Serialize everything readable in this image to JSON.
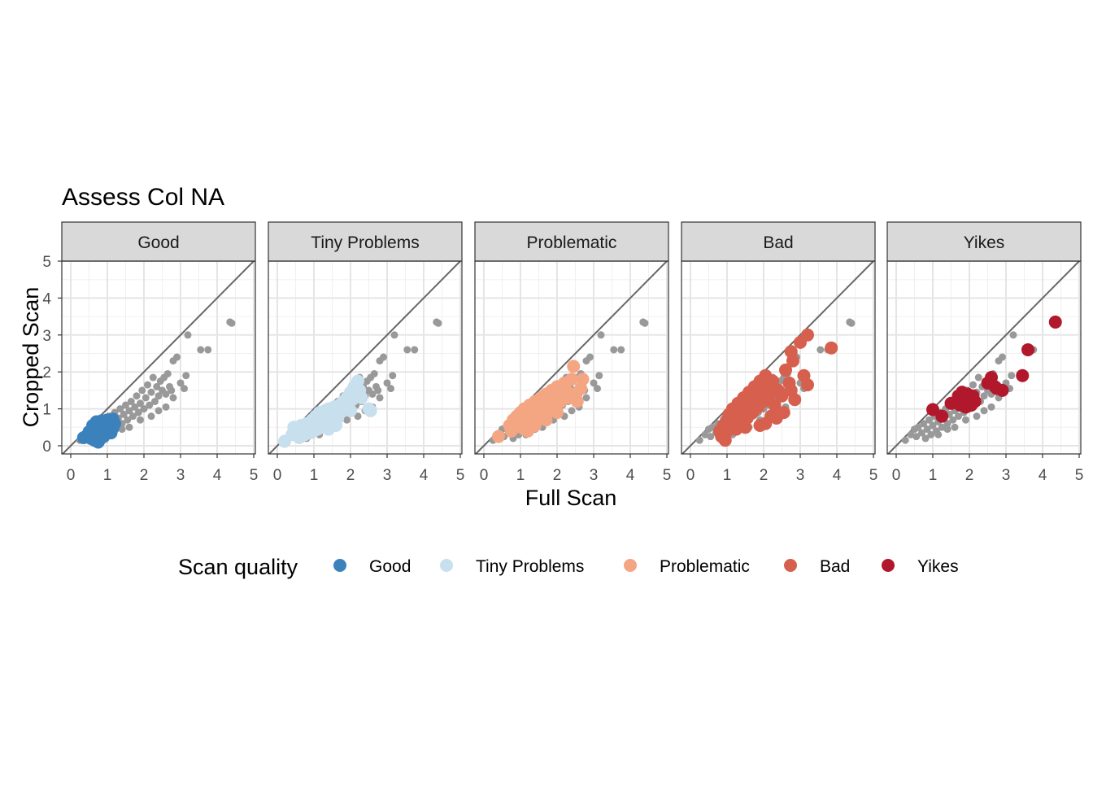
{
  "chart_data": {
    "type": "scatter",
    "title": "Assess Col NA",
    "xlabel": "Full Scan",
    "ylabel": "Cropped Scan",
    "xlim": [
      0,
      5
    ],
    "ylim": [
      0,
      5
    ],
    "x_ticks": [
      "0",
      "1",
      "2",
      "3",
      "4",
      "5"
    ],
    "y_ticks": [
      "0",
      "1",
      "2",
      "3",
      "4",
      "5"
    ],
    "grid": true,
    "reference_line": "y = x",
    "background_color": "#999999",
    "legend": {
      "title": "Scan quality",
      "placement": "bottom",
      "entries": [
        "Good",
        "Tiny Problems",
        "Problematic",
        "Bad",
        "Yikes"
      ]
    },
    "panels": [
      {
        "label": "Good",
        "color": "#3B82BD",
        "points": [
          [
            0.35,
            0.22
          ],
          [
            0.45,
            0.28
          ],
          [
            0.5,
            0.38
          ],
          [
            0.55,
            0.2
          ],
          [
            0.6,
            0.32
          ],
          [
            0.62,
            0.45
          ],
          [
            0.65,
            0.15
          ],
          [
            0.68,
            0.52
          ],
          [
            0.7,
            0.28
          ],
          [
            0.72,
            0.4
          ],
          [
            0.75,
            0.1
          ],
          [
            0.78,
            0.6
          ],
          [
            0.8,
            0.35
          ],
          [
            0.82,
            0.48
          ],
          [
            0.85,
            0.25
          ],
          [
            0.85,
            0.68
          ],
          [
            0.88,
            0.42
          ],
          [
            0.9,
            0.55
          ],
          [
            0.92,
            0.3
          ],
          [
            0.95,
            0.62
          ],
          [
            0.95,
            0.45
          ],
          [
            0.98,
            0.38
          ],
          [
            1.0,
            0.7
          ],
          [
            1.0,
            0.5
          ],
          [
            1.02,
            0.58
          ],
          [
            1.05,
            0.42
          ],
          [
            1.08,
            0.62
          ],
          [
            1.1,
            0.35
          ],
          [
            1.12,
            0.55
          ],
          [
            1.15,
            0.72
          ],
          [
            1.15,
            0.48
          ],
          [
            1.2,
            0.6
          ],
          [
            0.7,
            0.65
          ],
          [
            0.6,
            0.55
          ],
          [
            0.8,
            0.18
          ],
          [
            0.9,
            0.25
          ]
        ]
      },
      {
        "label": "Tiny Problems",
        "color": "#C8DFEE",
        "points": [
          [
            0.2,
            0.12
          ],
          [
            0.4,
            0.3
          ],
          [
            0.45,
            0.5
          ],
          [
            0.55,
            0.35
          ],
          [
            0.6,
            0.22
          ],
          [
            0.65,
            0.55
          ],
          [
            0.7,
            0.42
          ],
          [
            0.75,
            0.3
          ],
          [
            0.8,
            0.6
          ],
          [
            0.85,
            0.48
          ],
          [
            0.9,
            0.35
          ],
          [
            0.95,
            0.7
          ],
          [
            1.0,
            0.55
          ],
          [
            1.0,
            0.4
          ],
          [
            1.05,
            0.8
          ],
          [
            1.1,
            0.62
          ],
          [
            1.1,
            0.45
          ],
          [
            1.15,
            0.9
          ],
          [
            1.2,
            0.72
          ],
          [
            1.25,
            0.5
          ],
          [
            1.3,
            0.95
          ],
          [
            1.3,
            0.78
          ],
          [
            1.35,
            0.6
          ],
          [
            1.4,
            1.0
          ],
          [
            1.45,
            0.85
          ],
          [
            1.5,
            0.7
          ],
          [
            1.55,
            1.05
          ],
          [
            1.6,
            0.9
          ],
          [
            1.65,
            0.75
          ],
          [
            1.7,
            1.1
          ],
          [
            1.75,
            0.95
          ],
          [
            1.8,
            1.2
          ],
          [
            1.85,
            1.05
          ],
          [
            1.9,
            1.3
          ],
          [
            1.95,
            1.15
          ],
          [
            2.0,
            1.45
          ],
          [
            2.05,
            1.25
          ],
          [
            2.1,
            1.6
          ],
          [
            2.15,
            1.4
          ],
          [
            2.2,
            1.75
          ],
          [
            2.25,
            1.5
          ],
          [
            2.3,
            1.3
          ],
          [
            2.0,
            0.95
          ],
          [
            1.9,
            1.0
          ],
          [
            2.5,
            1.0
          ],
          [
            2.55,
            0.95
          ],
          [
            1.6,
            0.55
          ],
          [
            1.4,
            0.45
          ]
        ]
      },
      {
        "label": "Problematic",
        "color": "#F4A582",
        "points": [
          [
            0.4,
            0.25
          ],
          [
            0.7,
            0.55
          ],
          [
            0.75,
            0.4
          ],
          [
            0.8,
            0.7
          ],
          [
            0.85,
            0.5
          ],
          [
            0.9,
            0.8
          ],
          [
            0.95,
            0.6
          ],
          [
            1.0,
            0.9
          ],
          [
            1.05,
            0.7
          ],
          [
            1.1,
            0.45
          ],
          [
            1.1,
            1.0
          ],
          [
            1.15,
            0.8
          ],
          [
            1.2,
            0.6
          ],
          [
            1.25,
            1.1
          ],
          [
            1.3,
            0.9
          ],
          [
            1.35,
            0.7
          ],
          [
            1.4,
            1.2
          ],
          [
            1.45,
            1.0
          ],
          [
            1.5,
            0.8
          ],
          [
            1.55,
            1.3
          ],
          [
            1.6,
            1.1
          ],
          [
            1.65,
            0.9
          ],
          [
            1.7,
            1.4
          ],
          [
            1.75,
            1.2
          ],
          [
            1.8,
            1.0
          ],
          [
            1.85,
            1.5
          ],
          [
            1.9,
            1.3
          ],
          [
            1.95,
            1.1
          ],
          [
            2.0,
            1.6
          ],
          [
            2.05,
            1.4
          ],
          [
            2.1,
            1.2
          ],
          [
            2.2,
            1.7
          ],
          [
            2.25,
            1.5
          ],
          [
            2.3,
            1.3
          ],
          [
            2.4,
            1.8
          ],
          [
            2.45,
            2.15
          ],
          [
            2.5,
            1.4
          ],
          [
            2.55,
            1.2
          ],
          [
            2.65,
            1.55
          ],
          [
            2.7,
            1.8
          ],
          [
            1.2,
            0.4
          ],
          [
            1.4,
            0.55
          ],
          [
            1.7,
            0.7
          ],
          [
            2.0,
            0.9
          ]
        ]
      },
      {
        "label": "Bad",
        "color": "#D6604D",
        "points": [
          [
            0.8,
            0.4
          ],
          [
            0.85,
            0.25
          ],
          [
            0.9,
            0.55
          ],
          [
            0.95,
            0.15
          ],
          [
            1.0,
            0.7
          ],
          [
            1.0,
            0.4
          ],
          [
            1.05,
            0.85
          ],
          [
            1.1,
            0.55
          ],
          [
            1.15,
            1.0
          ],
          [
            1.2,
            0.7
          ],
          [
            1.25,
            0.45
          ],
          [
            1.3,
            1.15
          ],
          [
            1.35,
            0.85
          ],
          [
            1.4,
            0.6
          ],
          [
            1.45,
            1.3
          ],
          [
            1.5,
            1.0
          ],
          [
            1.55,
            0.75
          ],
          [
            1.6,
            1.45
          ],
          [
            1.65,
            1.15
          ],
          [
            1.7,
            0.9
          ],
          [
            1.75,
            1.6
          ],
          [
            1.8,
            1.3
          ],
          [
            1.85,
            1.05
          ],
          [
            1.9,
            1.75
          ],
          [
            1.95,
            1.45
          ],
          [
            2.0,
            1.2
          ],
          [
            2.05,
            1.9
          ],
          [
            2.1,
            1.6
          ],
          [
            2.15,
            1.35
          ],
          [
            2.2,
            0.8
          ],
          [
            2.25,
            1.75
          ],
          [
            2.3,
            1.1
          ],
          [
            2.35,
            0.75
          ],
          [
            2.4,
            1.5
          ],
          [
            2.5,
            1.35
          ],
          [
            2.55,
            0.9
          ],
          [
            2.6,
            2.05
          ],
          [
            2.7,
            1.7
          ],
          [
            2.75,
            1.5
          ],
          [
            2.75,
            2.55
          ],
          [
            2.8,
            2.3
          ],
          [
            2.85,
            1.25
          ],
          [
            3.0,
            2.8
          ],
          [
            3.1,
            1.9
          ],
          [
            3.2,
            3.0
          ],
          [
            3.2,
            1.65
          ],
          [
            3.85,
            2.65
          ],
          [
            1.5,
            0.5
          ],
          [
            1.9,
            0.55
          ],
          [
            2.05,
            0.6
          ]
        ]
      },
      {
        "label": "Yikes",
        "color": "#B2182B",
        "points": [
          [
            1.0,
            0.98
          ],
          [
            1.25,
            0.8
          ],
          [
            1.5,
            1.15
          ],
          [
            1.7,
            1.35
          ],
          [
            1.75,
            1.1
          ],
          [
            1.8,
            1.45
          ],
          [
            1.85,
            1.25
          ],
          [
            1.9,
            1.05
          ],
          [
            1.95,
            1.4
          ],
          [
            2.0,
            1.2
          ],
          [
            2.05,
            1.1
          ],
          [
            2.1,
            1.35
          ],
          [
            2.15,
            1.2
          ],
          [
            2.5,
            1.7
          ],
          [
            2.6,
            1.85
          ],
          [
            2.7,
            1.6
          ],
          [
            2.75,
            1.55
          ],
          [
            2.9,
            1.5
          ],
          [
            3.45,
            1.9
          ],
          [
            3.6,
            2.6
          ],
          [
            4.35,
            3.35
          ]
        ]
      }
    ],
    "background_points": [
      [
        0.25,
        0.15
      ],
      [
        0.4,
        0.3
      ],
      [
        0.5,
        0.45
      ],
      [
        0.55,
        0.25
      ],
      [
        0.6,
        0.5
      ],
      [
        0.7,
        0.35
      ],
      [
        0.75,
        0.6
      ],
      [
        0.8,
        0.2
      ],
      [
        0.85,
        0.45
      ],
      [
        0.9,
        0.7
      ],
      [
        0.95,
        0.3
      ],
      [
        1.0,
        0.55
      ],
      [
        1.05,
        0.8
      ],
      [
        1.1,
        0.4
      ],
      [
        1.15,
        0.65
      ],
      [
        1.2,
        0.9
      ],
      [
        1.25,
        0.5
      ],
      [
        1.3,
        0.75
      ],
      [
        1.35,
        1.0
      ],
      [
        1.4,
        0.6
      ],
      [
        1.45,
        0.85
      ],
      [
        1.5,
        1.1
      ],
      [
        1.55,
        0.7
      ],
      [
        1.6,
        0.95
      ],
      [
        1.65,
        1.2
      ],
      [
        1.7,
        0.8
      ],
      [
        1.75,
        1.05
      ],
      [
        1.8,
        1.35
      ],
      [
        1.85,
        0.9
      ],
      [
        1.9,
        1.15
      ],
      [
        1.95,
        1.5
      ],
      [
        2.0,
        1.0
      ],
      [
        2.05,
        1.3
      ],
      [
        2.1,
        1.65
      ],
      [
        2.15,
        1.1
      ],
      [
        2.2,
        1.45
      ],
      [
        2.25,
        1.85
      ],
      [
        2.3,
        1.2
      ],
      [
        2.35,
        1.6
      ],
      [
        2.4,
        1.35
      ],
      [
        2.45,
        1.75
      ],
      [
        2.5,
        1.5
      ],
      [
        2.55,
        1.85
      ],
      [
        2.6,
        1.4
      ],
      [
        2.65,
        1.95
      ],
      [
        2.7,
        1.6
      ],
      [
        2.75,
        1.5
      ],
      [
        2.8,
        2.3
      ],
      [
        2.9,
        2.4
      ],
      [
        3.0,
        1.7
      ],
      [
        3.15,
        1.9
      ],
      [
        3.2,
        3.0
      ],
      [
        3.55,
        2.6
      ],
      [
        3.75,
        2.6
      ],
      [
        4.35,
        3.35
      ],
      [
        4.4,
        3.32
      ],
      [
        1.15,
        0.3
      ],
      [
        1.4,
        0.45
      ],
      [
        1.6,
        0.5
      ],
      [
        1.9,
        0.7
      ],
      [
        2.2,
        0.8
      ],
      [
        2.4,
        0.95
      ],
      [
        2.6,
        1.05
      ],
      [
        2.8,
        1.3
      ],
      [
        3.1,
        1.55
      ]
    ]
  }
}
